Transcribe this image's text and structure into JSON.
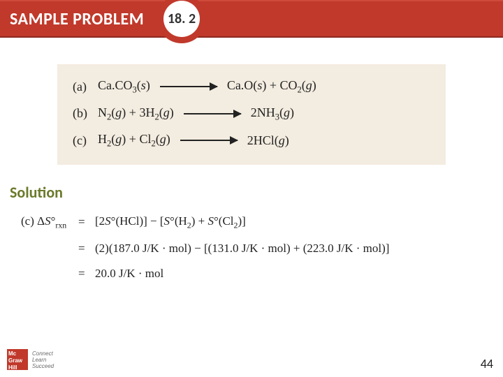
{
  "header": {
    "title": "SAMPLE PROBLEM",
    "badge": "18. 2",
    "bar_color": "#c0392b",
    "text_color": "#ffffff"
  },
  "equations_panel": {
    "background": "#f3ece0",
    "rows": [
      {
        "label": "(a)",
        "lhs": "Ca.CO<sub>3</sub>(<i>s</i>)",
        "rhs": "Ca.O(<i>s</i>) + CO<sub>2</sub>(<i>g</i>)"
      },
      {
        "label": "(b)",
        "lhs": "N<sub>2</sub>(<i>g</i>) + 3H<sub>2</sub>(<i>g</i>)",
        "rhs": "2NH<sub>3</sub>(<i>g</i>)"
      },
      {
        "label": "(c)",
        "lhs": "H<sub>2</sub>(<i>g</i>) + Cl<sub>2</sub>(<i>g</i>)",
        "rhs": "2HCl(<i>g</i>)"
      }
    ]
  },
  "solution": {
    "label": "Solution",
    "label_color": "#6b7a2a",
    "rows": [
      {
        "left": "(c) Δ<i>S</i>°<sub>rxn</sub>",
        "eq": "=",
        "right": "[2<i>S</i>°(HCl)] − [<i>S</i>°(H<sub>2</sub>) + <i>S</i>°(Cl<sub>2</sub>)]"
      },
      {
        "left": "",
        "eq": "=",
        "right": "(2)(187.0 J/K · mol) − [(131.0 J/K · mol) + (223.0 J/K · mol)]"
      },
      {
        "left": "",
        "eq": "=",
        "right": "20.0 J/K · mol"
      }
    ]
  },
  "footer": {
    "logo_lines": "Mc\nGraw\nHill",
    "tagline": "Connect\nLearn\nSucceed",
    "page_number": "44"
  }
}
